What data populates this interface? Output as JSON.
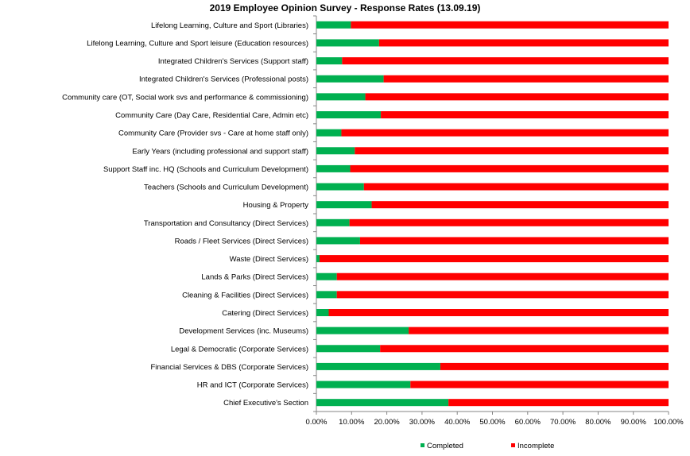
{
  "chart_data": {
    "type": "bar",
    "orientation": "horizontal",
    "stacked": true,
    "title": "2019 Employee Opinion Survey - Response Rates (13.09.19)",
    "xlabel": "",
    "ylabel": "",
    "xlim": [
      0,
      1
    ],
    "grid": false,
    "legend_position": "bottom",
    "x_ticks": [
      "0.00%",
      "10.00%",
      "20.00%",
      "30.00%",
      "40.00%",
      "50.00%",
      "60.00%",
      "70.00%",
      "80.00%",
      "90.00%",
      "100.00%"
    ],
    "categories": [
      "Lifelong Learning, Culture and Sport (Libraries)",
      "Lifelong Learning, Culture and Sport leisure (Education resources)",
      "Integrated Children's Services (Support staff)",
      "Integrated Children's Services (Professional posts)",
      "Community care (OT, Social work svs and performance & commissioning)",
      "Community Care (Day Care, Residential Care, Admin etc)",
      "Community Care (Provider svs - Care at home staff only)",
      "Early Years (including professional and support staff)",
      "Support Staff inc. HQ (Schools and Curriculum Development)",
      "Teachers (Schools and Curriculum Development)",
      "Housing & Property",
      "Transportation and Consultancy (Direct Services)",
      "Roads / Fleet Services (Direct Services)",
      "Waste (Direct Services)",
      "Lands & Parks (Direct Services)",
      "Cleaning & Facilities (Direct Services)",
      "Catering (Direct Services)",
      "Development Services (inc. Museums)",
      "Legal & Democratic (Corporate Services)",
      "Financial Services & DBS (Corporate Services)",
      "HR and ICT (Corporate Services)",
      "Chief Executive's Section"
    ],
    "series": [
      {
        "name": "Completed",
        "color": "#00b050",
        "values": [
          0.098,
          0.178,
          0.073,
          0.191,
          0.139,
          0.183,
          0.071,
          0.109,
          0.096,
          0.135,
          0.157,
          0.094,
          0.124,
          0.009,
          0.058,
          0.058,
          0.035,
          0.262,
          0.181,
          0.352,
          0.267,
          0.375
        ]
      },
      {
        "name": "Incomplete",
        "color": "#ff0000",
        "values": [
          0.902,
          0.822,
          0.927,
          0.809,
          0.861,
          0.817,
          0.929,
          0.891,
          0.904,
          0.865,
          0.843,
          0.906,
          0.876,
          0.991,
          0.942,
          0.942,
          0.965,
          0.738,
          0.819,
          0.648,
          0.733,
          0.625
        ]
      }
    ]
  }
}
